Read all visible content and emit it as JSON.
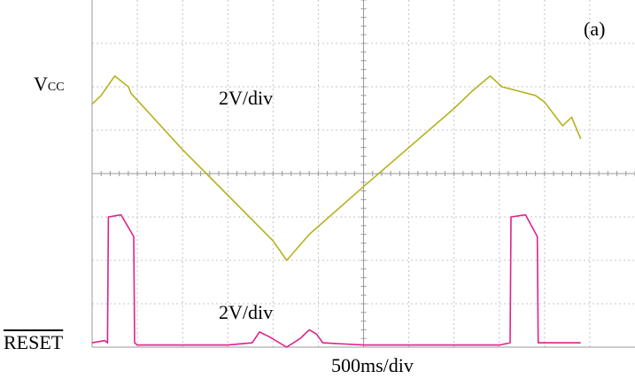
{
  "labels": {
    "vcc_main": "V",
    "vcc_sub": "CC",
    "reset": "RESET",
    "ch1_scale": "2V/div",
    "ch2_scale": "2V/div",
    "timebase": "500ms/div",
    "panel_tag": "(a)"
  },
  "colors": {
    "ch1": "#b5b21e",
    "ch2": "#e0218a",
    "grid": "#c4c4c4",
    "axis": "#9a9a9a"
  },
  "chart_data": {
    "type": "line",
    "grid": {
      "x_divisions": 12,
      "y_divisions": 8
    },
    "xlabel": "500ms/div",
    "xlim": [
      0,
      6000
    ],
    "x_unit": "ms",
    "series": [
      {
        "name": "VCC",
        "scale_label": "2V/div",
        "ylim": [
          -4,
          12
        ],
        "x": [
          0,
          100,
          250,
          400,
          430,
          1000,
          1500,
          2000,
          2150,
          2400,
          3000,
          3500,
          4000,
          4200,
          4400,
          4530,
          4900,
          5000,
          5200,
          5300,
          5400
        ],
        "values": [
          7.2,
          7.6,
          8.5,
          8.0,
          7.7,
          5.1,
          3.0,
          0.9,
          0.0,
          1.2,
          3.4,
          5.2,
          7.0,
          7.8,
          8.5,
          8.0,
          7.6,
          7.3,
          6.2,
          6.6,
          5.6
        ]
      },
      {
        "name": "RESET",
        "scale_label": "2V/div",
        "ylim": [
          -12,
          4
        ],
        "x": [
          0,
          140,
          170,
          180,
          320,
          460,
          470,
          500,
          1000,
          1500,
          1770,
          1850,
          1950,
          2150,
          2300,
          2400,
          2480,
          2550,
          3000,
          3500,
          4000,
          4500,
          4620,
          4630,
          4790,
          4920,
          4930,
          5000,
          5400
        ],
        "values": [
          -11.8,
          -11.7,
          -11.8,
          -6.0,
          -5.9,
          -6.9,
          -11.8,
          -11.9,
          -11.9,
          -11.9,
          -11.8,
          -11.3,
          -11.5,
          -12.0,
          -11.6,
          -11.2,
          -11.4,
          -11.8,
          -11.9,
          -11.9,
          -11.9,
          -11.9,
          -11.8,
          -6.0,
          -5.9,
          -6.9,
          -11.8,
          -11.8,
          -11.8
        ]
      }
    ]
  }
}
